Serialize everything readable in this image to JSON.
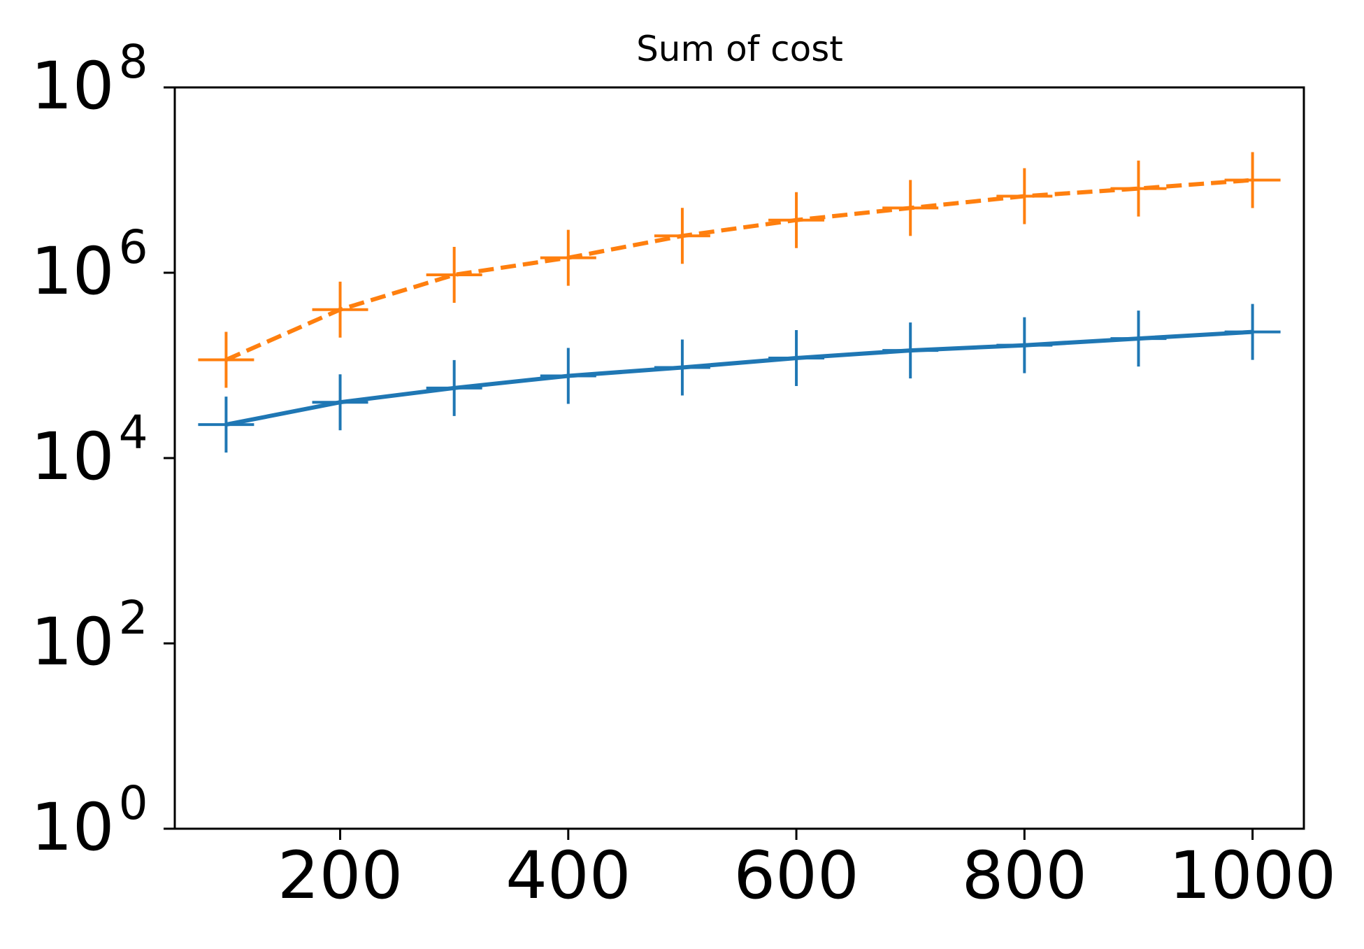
{
  "chart_data": {
    "type": "line",
    "title": "Sum of cost",
    "xlabel": "",
    "ylabel": "",
    "yscale": "log",
    "xlim": [
      55,
      1045
    ],
    "ylim": [
      1,
      100000000
    ],
    "xticks": [
      200,
      400,
      600,
      800,
      1000
    ],
    "xtick_labels": [
      "200",
      "400",
      "600",
      "800",
      "1000"
    ],
    "yticks": [
      1,
      100,
      10000,
      1000000,
      100000000
    ],
    "ytick_bases": [
      "10",
      "10",
      "10",
      "10",
      "10"
    ],
    "ytick_exponents": [
      "0",
      "2",
      "4",
      "6",
      "8"
    ],
    "grid": false,
    "legend": "none",
    "x": [
      100,
      200,
      300,
      400,
      500,
      600,
      700,
      800,
      900,
      1000
    ],
    "series": [
      {
        "color": "#1f77b4",
        "line_style": "solid",
        "marker": "plus",
        "values": [
          23000,
          40000,
          57000,
          77000,
          95000,
          120000,
          145000,
          165000,
          195000,
          230000
        ]
      },
      {
        "color": "#ff7f0e",
        "line_style": "dashed",
        "marker": "plus",
        "values": [
          115000,
          400000,
          950000,
          1450000,
          2500000,
          3700000,
          5000000,
          6700000,
          8100000,
          10000000
        ]
      }
    ]
  }
}
